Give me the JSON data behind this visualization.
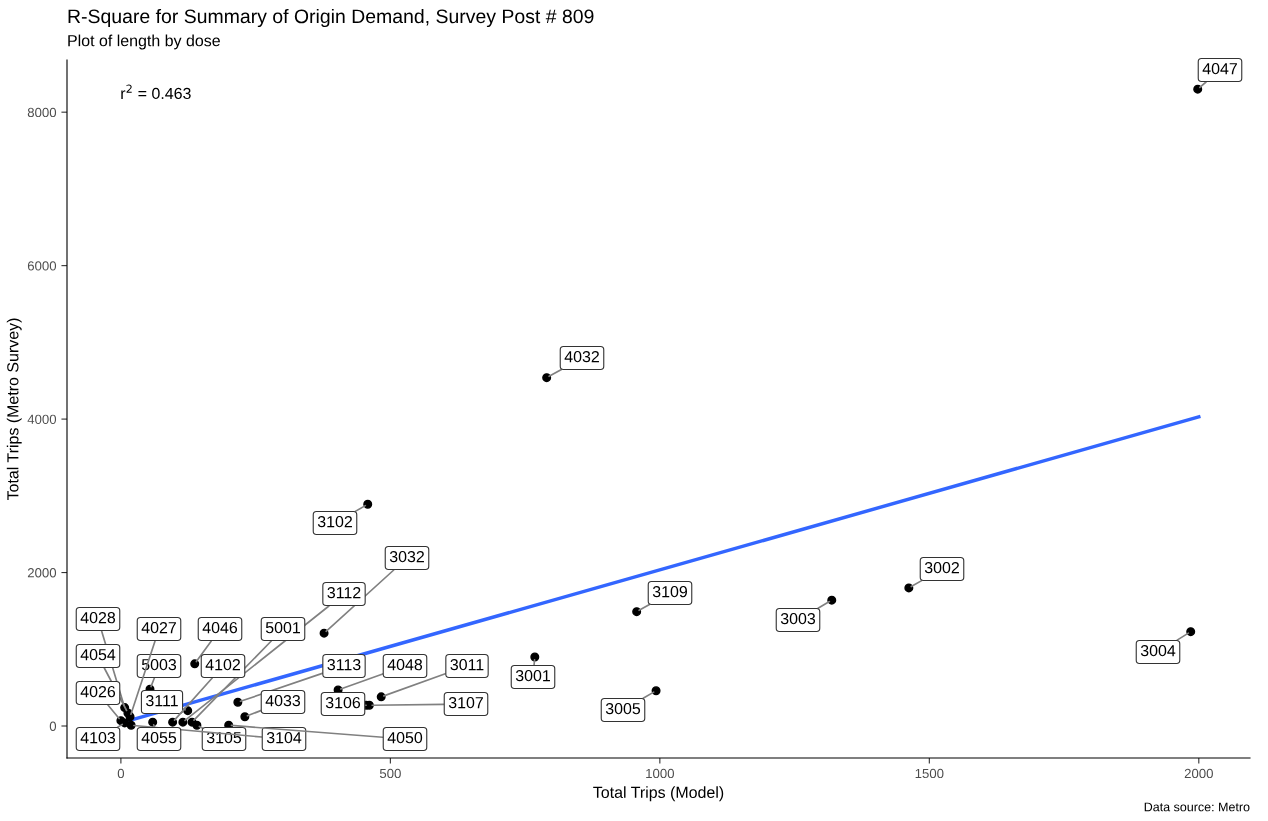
{
  "chart_data": {
    "type": "scatter",
    "title": "R-Square for Summary of Origin Demand, Survey Post # 809",
    "subtitle": "Plot of length by dose",
    "xlabel": "Total Trips (Model)",
    "ylabel": "Total Trips (Metro Survey)",
    "xlim": [
      -100,
      2095
    ],
    "ylim": [
      -417,
      8680
    ],
    "xticks": [
      0,
      500,
      1000,
      1500,
      2000
    ],
    "yticks": [
      0,
      2000,
      4000,
      6000,
      8000
    ],
    "grid": false,
    "series": [
      {
        "color": "#000000",
        "marker": "circle",
        "x": [
          1998,
          790,
          458,
          377,
          957,
          1319,
          1462,
          1985,
          768,
          993,
          483,
          403,
          461,
          455,
          137,
          54,
          217,
          124,
          230,
          115,
          132,
          96,
          141,
          19,
          200,
          59,
          7,
          13,
          17,
          0,
          7
        ],
        "values": [
          8300,
          4540,
          2890,
          1210,
          1490,
          1640,
          1800,
          1230,
          900,
          460,
          380,
          470,
          270,
          270,
          810,
          480,
          310,
          200,
          120,
          50,
          50,
          50,
          10,
          10,
          10,
          50,
          240,
          170,
          120,
          70,
          40
        ]
      },
      {
        "type": "line",
        "color": "#3366ff",
        "x": [
          0,
          2000
        ],
        "values": [
          40,
          4030
        ]
      }
    ],
    "annotations": [
      "r$^{2}$ = 0.463",
      "Data source: Metro",
      {
        "text": "4047",
        "x": 1998,
        "y": 8300
      },
      {
        "text": "4032",
        "x": 790,
        "y": 4540
      },
      {
        "text": "3102",
        "x": 458,
        "y": 2890
      },
      {
        "text": "3032",
        "x": 377,
        "y": 1210
      },
      {
        "text": "3109",
        "x": 957,
        "y": 1490
      },
      {
        "text": "3003",
        "x": 1319,
        "y": 1640
      },
      {
        "text": "3002",
        "x": 1462,
        "y": 1800
      },
      {
        "text": "3004",
        "x": 1985,
        "y": 1230
      },
      {
        "text": "3001",
        "x": 768,
        "y": 900
      },
      {
        "text": "3005",
        "x": 993,
        "y": 460
      },
      {
        "text": "3011",
        "x": 483,
        "y": 380
      },
      {
        "text": "4048",
        "x": 403,
        "y": 470
      },
      {
        "text": "3107",
        "x": 461,
        "y": 270
      },
      {
        "text": "3106",
        "x": 455,
        "y": 270
      },
      {
        "text": "4046",
        "x": 137,
        "y": 810
      },
      {
        "text": "5003",
        "x": 54,
        "y": 480
      },
      {
        "text": "3113",
        "x": 217,
        "y": 310
      },
      {
        "text": "3111",
        "x": 124,
        "y": 200
      },
      {
        "text": "4033",
        "x": 230,
        "y": 120
      },
      {
        "text": "3112",
        "x": 115,
        "y": 50
      },
      {
        "text": "5001",
        "x": 132,
        "y": 50
      },
      {
        "text": "4102",
        "x": 96,
        "y": 50
      },
      {
        "text": "3105",
        "x": 141,
        "y": 10
      },
      {
        "text": "3104",
        "x": 19,
        "y": 10
      },
      {
        "text": "4050",
        "x": 200,
        "y": 10
      },
      {
        "text": "4055",
        "x": 59,
        "y": 50
      },
      {
        "text": "4028",
        "x": 7,
        "y": 240
      },
      {
        "text": "4054",
        "x": 13,
        "y": 170
      },
      {
        "text": "4027",
        "x": 17,
        "y": 120
      },
      {
        "text": "4026",
        "x": 0,
        "y": 70
      },
      {
        "text": "4103",
        "x": 7,
        "y": 40
      }
    ]
  }
}
